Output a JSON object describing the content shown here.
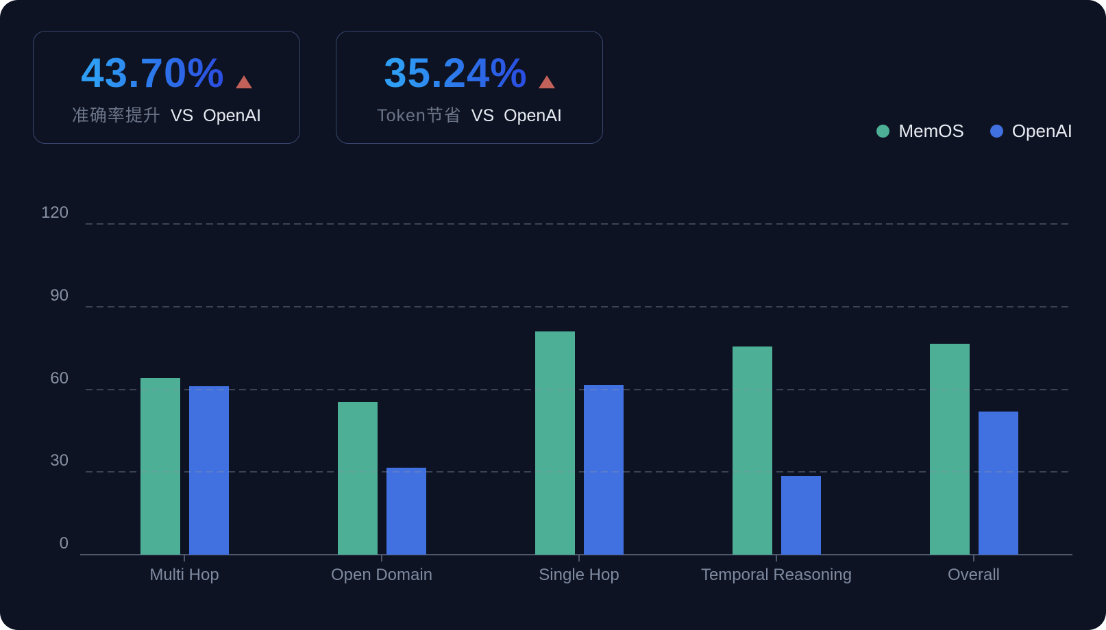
{
  "stats": [
    {
      "value": "43.70%",
      "trend_icon": "triangle-up",
      "metric": "准确率提升",
      "vs_label": "VS",
      "vs_target": "OpenAI"
    },
    {
      "value": "35.24%",
      "trend_icon": "triangle-up",
      "metric": "Token节省",
      "vs_label": "VS",
      "vs_target": "OpenAI"
    }
  ],
  "legend": [
    {
      "label": "MemOS",
      "color": "#4daf96"
    },
    {
      "label": "OpenAI",
      "color": "#4170e0"
    }
  ],
  "chart_data": {
    "type": "bar",
    "categories": [
      "Multi Hop",
      "Open Domain",
      "Single Hop",
      "Temporal Reasoning",
      "Overall"
    ],
    "series": [
      {
        "name": "MemOS",
        "color": "#4daf96",
        "values": [
          64,
          55.5,
          81,
          75.5,
          76.5
        ]
      },
      {
        "name": "OpenAI",
        "color": "#4170e0",
        "values": [
          61,
          31.5,
          61.5,
          28.5,
          52
        ]
      }
    ],
    "title": "",
    "xlabel": "",
    "ylabel": "",
    "ylim": [
      0,
      120
    ],
    "yticks": [
      0,
      30,
      60,
      90,
      120
    ],
    "grid": "horizontal-dashed",
    "legend_position": "top-right"
  },
  "colors": {
    "background": "#0d1322",
    "card_border": "#5f73af",
    "value_gradient_start": "#2f9ef5",
    "value_gradient_end": "#2b4fe0",
    "trend_triangle": "#c2605a",
    "axis_text": "#8791a5",
    "metric_text": "#6b7488",
    "light_text": "#e9ecf3"
  }
}
